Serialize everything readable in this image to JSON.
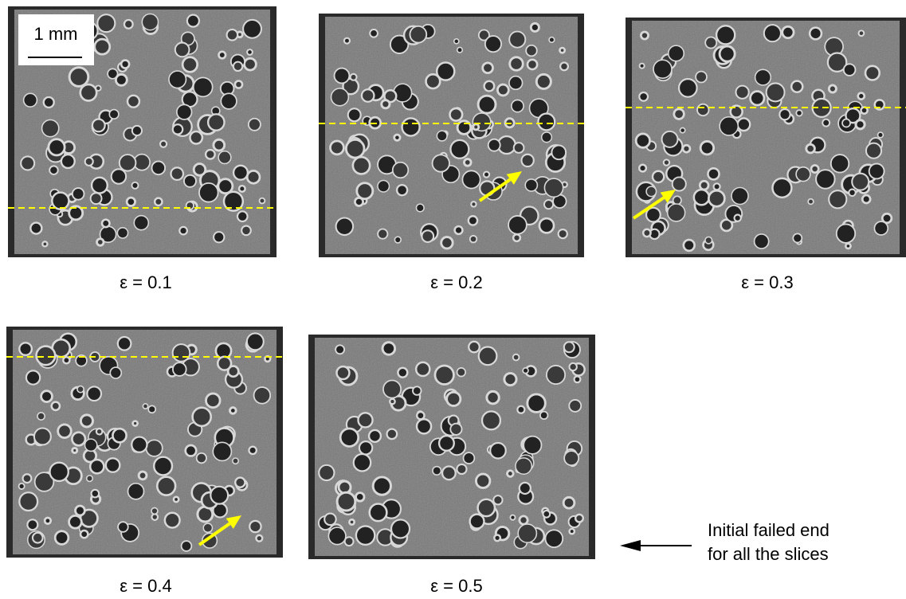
{
  "scale_bar": "1 mm",
  "panels": [
    {
      "label": "ε = 0.1"
    },
    {
      "label": "ε = 0.2"
    },
    {
      "label": "ε = 0.3"
    },
    {
      "label": "ε = 0.4"
    },
    {
      "label": "ε = 0.5"
    }
  ],
  "note": [
    "Initial failed end",
    "for all the slices"
  ]
}
